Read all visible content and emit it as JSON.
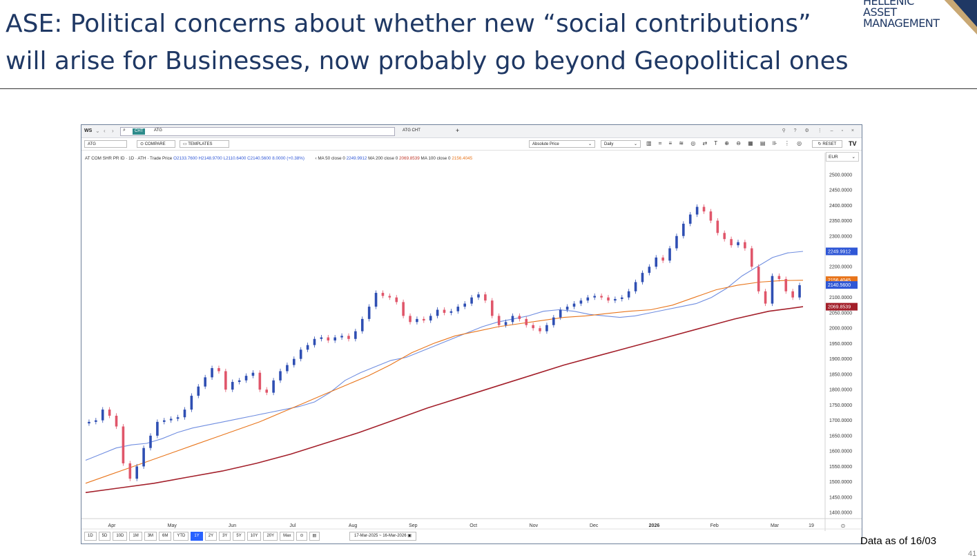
{
  "slide": {
    "title_line1": "ASE: Political concerns about whether new “social contributions”",
    "title_line2": "will arise for Businesses, now probably go beyond Geopolitical ones",
    "logo_line1": "HELLENIC",
    "logo_line2": "ASSET",
    "logo_line3": "MANAGEMENT",
    "footnote": "Data as of 16/03",
    "page_number": "41"
  },
  "toolbar1": {
    "workspace": "WS",
    "chip": "CHT",
    "search_value": "ATG",
    "tab2": "ATG CHT",
    "plus": "+"
  },
  "toolbar2": {
    "ticker": "ATG",
    "compare": "COMPARE",
    "templates": "TEMPLATES",
    "price_mode": "Absolute Price",
    "interval": "Daily",
    "reset": "RESET",
    "currency": "EUR"
  },
  "legend": {
    "instrument": "AT COM SHR PR ID · 1D · ATH · Trade Price",
    "open": "O2133.7600",
    "high": "H2148.9700",
    "low": "L2110.6400",
    "close": "C2140.5600",
    "change": "8.0000 (+0.38%)",
    "ma50_label": "MA 50 close 0",
    "ma50_value": "2249.9912",
    "ma200_label": "MA 200 close 0",
    "ma200_value": "2069.8539",
    "ma100_label": "MA 100 close 0",
    "ma100_value": "2156.4045"
  },
  "range_buttons": [
    "1D",
    "5D",
    "10D",
    "1M",
    "3M",
    "6M",
    "YTD",
    "1Y",
    "2Y",
    "3Y",
    "5Y",
    "10Y",
    "20Y",
    "Max"
  ],
  "active_range": "1Y",
  "date_range": "17-Mar-2025 ~ 16-Mar-2026",
  "colors": {
    "up": "#2f4fb3",
    "down": "#e0566a",
    "ma50": "#6f8de0",
    "ma100": "#e8741a",
    "ma200": "#a31f2a",
    "title": "#1f3864"
  },
  "chart_data": {
    "type": "line",
    "title": "",
    "ylim": [
      1380,
      2540
    ],
    "y_ticks": [
      "2500.0000",
      "2450.0000",
      "2400.0000",
      "2350.0000",
      "2300.0000",
      "2250.0000",
      "2200.0000",
      "2150.0000",
      "2100.0000",
      "2050.0000",
      "2000.0000",
      "1950.0000",
      "1900.0000",
      "1850.0000",
      "1800.0000",
      "1750.0000",
      "1700.0000",
      "1650.0000",
      "1600.0000",
      "1550.0000",
      "1500.0000",
      "1450.0000",
      "1400.0000"
    ],
    "x_ticks": [
      "Apr",
      "May",
      "Jun",
      "Jul",
      "Aug",
      "Sep",
      "Oct",
      "Nov",
      "Dec",
      "2026",
      "Feb",
      "Mar",
      "19"
    ],
    "price_tags": [
      {
        "label": "2249.9912",
        "value": 2249.99,
        "color": "#2f57d6"
      },
      {
        "label": "2156.4045",
        "value": 2156.4,
        "color": "#e8741a"
      },
      {
        "label": "2140.5600",
        "value": 2140.56,
        "color": "#2f57d6"
      },
      {
        "label": "2069.8539",
        "value": 2069.85,
        "color": "#a31f2a"
      }
    ],
    "series": [
      {
        "name": "AT COM SHR PR ID",
        "kind": "price",
        "values": [
          1695,
          1700,
          1735,
          1715,
          1680,
          1560,
          1510,
          1550,
          1610,
          1650,
          1695,
          1700,
          1705,
          1710,
          1735,
          1780,
          1810,
          1840,
          1870,
          1860,
          1800,
          1825,
          1830,
          1845,
          1855,
          1800,
          1790,
          1830,
          1860,
          1880,
          1900,
          1930,
          1945,
          1965,
          1970,
          1960,
          1970,
          1975,
          1965,
          1990,
          2030,
          2070,
          2115,
          2105,
          2100,
          2085,
          2040,
          2020,
          2030,
          2025,
          2040,
          2060,
          2050,
          2055,
          2070,
          2080,
          2100,
          2110,
          2090,
          2040,
          2010,
          2020,
          2040,
          2030,
          2010,
          2000,
          1990,
          2010,
          2035,
          2060,
          2070,
          2080,
          2090,
          2100,
          2105,
          2100,
          2090,
          2095,
          2100,
          2120,
          2150,
          2180,
          2200,
          2230,
          2220,
          2260,
          2300,
          2340,
          2370,
          2395,
          2380,
          2350,
          2310,
          2290,
          2270,
          2280,
          2260,
          2200,
          2120,
          2080,
          2170,
          2160,
          2120,
          2100,
          2140
        ]
      },
      {
        "name": "MA 50 close 0",
        "kind": "ma",
        "values": [
          1570,
          1590,
          1610,
          1620,
          1625,
          1640,
          1660,
          1675,
          1685,
          1695,
          1705,
          1715,
          1725,
          1735,
          1745,
          1760,
          1790,
          1830,
          1855,
          1875,
          1895,
          1905,
          1925,
          1945,
          1965,
          1985,
          2005,
          2020,
          2030,
          2040,
          2055,
          2060,
          2055,
          2045,
          2040,
          2035,
          2040,
          2050,
          2060,
          2070,
          2080,
          2100,
          2130,
          2170,
          2200,
          2230,
          2245,
          2250
        ]
      },
      {
        "name": "MA 100 close 0",
        "kind": "ma",
        "values": [
          1495,
          1520,
          1545,
          1570,
          1595,
          1620,
          1645,
          1670,
          1695,
          1725,
          1755,
          1785,
          1815,
          1845,
          1880,
          1920,
          1950,
          1975,
          1990,
          2005,
          2015,
          2025,
          2035,
          2040,
          2048,
          2055,
          2060,
          2075,
          2100,
          2125,
          2140,
          2150,
          2155,
          2156
        ]
      },
      {
        "name": "MA 200 close 0",
        "kind": "ma",
        "values": [
          1465,
          1480,
          1495,
          1515,
          1535,
          1560,
          1590,
          1625,
          1660,
          1700,
          1740,
          1775,
          1810,
          1845,
          1880,
          1910,
          1940,
          1970,
          2000,
          2030,
          2055,
          2070
        ]
      }
    ]
  }
}
